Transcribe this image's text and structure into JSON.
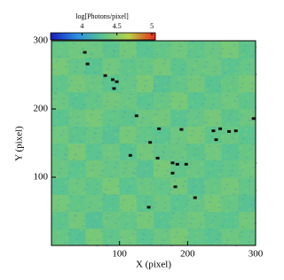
{
  "chart_data": {
    "type": "heatmap",
    "colorbar_label": "log[Photons/pixel]",
    "clim": [
      3.55,
      5.05
    ],
    "cticks": [
      4,
      4.5,
      5
    ],
    "colorscale": [
      "#1a1ab8",
      "#2a8ee0",
      "#5cc48e",
      "#b8d048",
      "#e82a1e"
    ],
    "masked_color": "#111111",
    "xlabel": "X (pixel)",
    "ylabel": "Y (pixel)",
    "xlim": [
      0,
      300
    ],
    "ylim": [
      0,
      300
    ],
    "xticks": [
      100,
      200,
      300
    ],
    "yticks": [
      100,
      200,
      300
    ],
    "z": [
      [
        4.35,
        4.28,
        4.41,
        4.32,
        4.38,
        4.3,
        4.36,
        4.42,
        4.33,
        4.29,
        4.37,
        4.34
      ],
      [
        4.31,
        4.39,
        4.27,
        4.36,
        4.33,
        4.4,
        4.29,
        4.35,
        4.38,
        4.32,
        4.3,
        4.39
      ],
      [
        4.4,
        4.33,
        4.36,
        4.29,
        4.42,
        4.31,
        4.37,
        4.3,
        4.34,
        4.41,
        4.35,
        4.28
      ],
      [
        4.29,
        4.37,
        4.32,
        4.41,
        4.3,
        4.36,
        4.33,
        4.39,
        4.28,
        4.35,
        4.4,
        4.33
      ],
      [
        4.36,
        4.3,
        4.39,
        4.34,
        4.37,
        4.28,
        4.41,
        4.32,
        4.36,
        4.3,
        4.33,
        4.38
      ],
      [
        4.33,
        4.42,
        4.3,
        4.37,
        4.29,
        4.39,
        4.34,
        4.36,
        4.31,
        4.38,
        4.29,
        4.35
      ],
      [
        4.38,
        4.31,
        4.35,
        4.28,
        4.4,
        4.33,
        4.3,
        4.37,
        4.42,
        4.32,
        4.36,
        4.3
      ],
      [
        4.3,
        4.36,
        4.41,
        4.33,
        4.31,
        4.37,
        4.39,
        4.29,
        4.34,
        4.4,
        4.31,
        4.37
      ],
      [
        4.37,
        4.29,
        4.33,
        4.39,
        4.36,
        4.3,
        4.35,
        4.41,
        4.3,
        4.33,
        4.38,
        4.32
      ],
      [
        4.32,
        4.4,
        4.36,
        4.3,
        4.34,
        4.42,
        4.28,
        4.33,
        4.39,
        4.29,
        4.35,
        4.41
      ],
      [
        4.41,
        4.34,
        4.29,
        4.38,
        4.32,
        4.35,
        4.4,
        4.31,
        4.36,
        4.37,
        4.3,
        4.34
      ],
      [
        4.34,
        4.38,
        4.37,
        4.31,
        4.39,
        4.29,
        4.33,
        4.38,
        4.32,
        4.36,
        4.41,
        4.31
      ]
    ],
    "masked": {
      "x": [
        49,
        53,
        79,
        90,
        96,
        92,
        125,
        158,
        191,
        238,
        248,
        261,
        271,
        297,
        242,
        145,
        116,
        156,
        178,
        185,
        198,
        178,
        182,
        211,
        143
      ],
      "y": [
        283,
        266,
        249,
        243,
        240,
        230,
        190,
        171,
        170,
        168,
        171,
        167,
        168,
        186,
        155,
        151,
        132,
        128,
        121,
        119,
        119,
        106,
        86,
        70,
        56
      ]
    }
  }
}
